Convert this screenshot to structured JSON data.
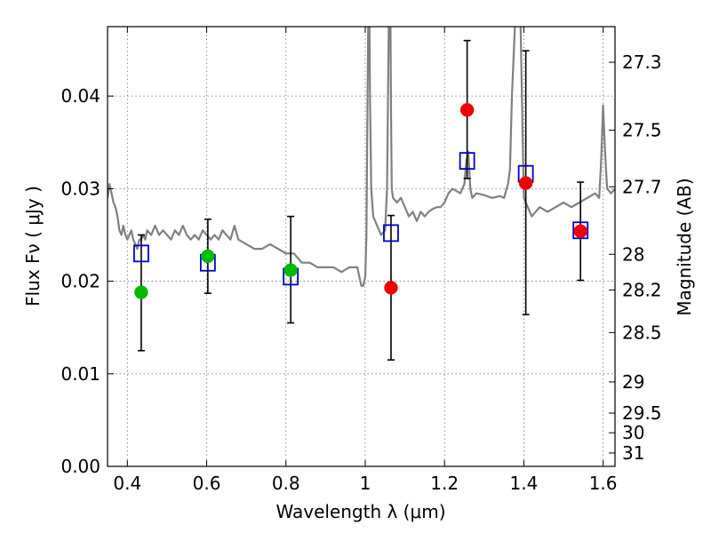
{
  "chart_data": {
    "type": "scatter",
    "xlabel": "Wavelength  λ (μm)",
    "ylabel": "Flux  Fν  ( μJy )",
    "ylabel_right": "Magnitude (AB)",
    "xlim": [
      0.35,
      1.63
    ],
    "ylim": [
      0.0,
      0.0475
    ],
    "x_ticks": [
      {
        "value": 0.4,
        "label": "0.4"
      },
      {
        "value": 0.6,
        "label": "0.6"
      },
      {
        "value": 0.8,
        "label": "0.8"
      },
      {
        "value": 1.0,
        "label": "1"
      },
      {
        "value": 1.2,
        "label": "1.2"
      },
      {
        "value": 1.4,
        "label": "1.4"
      },
      {
        "value": 1.6,
        "label": "1.6"
      }
    ],
    "y_ticks": [
      {
        "value": 0.0,
        "label": "0.00"
      },
      {
        "value": 0.01,
        "label": "0.01"
      },
      {
        "value": 0.02,
        "label": "0.02"
      },
      {
        "value": 0.03,
        "label": "0.03"
      },
      {
        "value": 0.04,
        "label": "0.04"
      }
    ],
    "mag_ticks": [
      {
        "value": 27.3,
        "label": "27.3"
      },
      {
        "value": 27.5,
        "label": "27.5"
      },
      {
        "value": 27.7,
        "label": "27.7"
      },
      {
        "value": 28,
        "label": "28"
      },
      {
        "value": 28.2,
        "label": "28.2"
      },
      {
        "value": 28.5,
        "label": "28.5"
      },
      {
        "value": 29,
        "label": "29"
      },
      {
        "value": 29.5,
        "label": "29.5"
      },
      {
        "value": 30,
        "label": "30"
      },
      {
        "value": 31,
        "label": "31"
      }
    ],
    "grid": true,
    "colors": {
      "model": "#808080",
      "model_flux": "#0000cc",
      "green": "#00bb00",
      "red": "#ee0000",
      "errorbar": "#000000"
    },
    "model_spectrum": {
      "x": [
        0.35,
        0.355,
        0.36,
        0.365,
        0.37,
        0.375,
        0.38,
        0.385,
        0.39,
        0.395,
        0.4,
        0.405,
        0.41,
        0.415,
        0.42,
        0.425,
        0.43,
        0.435,
        0.44,
        0.445,
        0.45,
        0.46,
        0.47,
        0.48,
        0.49,
        0.5,
        0.51,
        0.52,
        0.53,
        0.54,
        0.55,
        0.56,
        0.57,
        0.58,
        0.59,
        0.6,
        0.61,
        0.62,
        0.63,
        0.64,
        0.65,
        0.66,
        0.67,
        0.68,
        0.7,
        0.72,
        0.74,
        0.76,
        0.78,
        0.8,
        0.82,
        0.84,
        0.86,
        0.88,
        0.9,
        0.92,
        0.94,
        0.96,
        0.98,
        0.985,
        0.99,
        0.995,
        1.0,
        1.003,
        1.006,
        1.008,
        1.01,
        1.012,
        1.015,
        1.02,
        1.03,
        1.04,
        1.05,
        1.055,
        1.06,
        1.063,
        1.065,
        1.067,
        1.07,
        1.08,
        1.09,
        1.1,
        1.11,
        1.12,
        1.13,
        1.14,
        1.15,
        1.16,
        1.17,
        1.18,
        1.19,
        1.2,
        1.21,
        1.22,
        1.24,
        1.25,
        1.255,
        1.26,
        1.265,
        1.27,
        1.28,
        1.3,
        1.32,
        1.34,
        1.35,
        1.36,
        1.365,
        1.37,
        1.38,
        1.39,
        1.4,
        1.42,
        1.44,
        1.46,
        1.48,
        1.5,
        1.52,
        1.54,
        1.56,
        1.58,
        1.59,
        1.595,
        1.6,
        1.605,
        1.61,
        1.62,
        1.63
      ],
      "y": [
        0.029,
        0.0305,
        0.0295,
        0.0285,
        0.028,
        0.027,
        0.0255,
        0.025,
        0.026,
        0.025,
        0.0245,
        0.025,
        0.0255,
        0.0245,
        0.024,
        0.0235,
        0.0245,
        0.0245,
        0.025,
        0.0245,
        0.0255,
        0.025,
        0.026,
        0.025,
        0.0255,
        0.025,
        0.0245,
        0.0255,
        0.025,
        0.026,
        0.025,
        0.0245,
        0.025,
        0.0245,
        0.0255,
        0.025,
        0.0245,
        0.025,
        0.0245,
        0.0255,
        0.025,
        0.0245,
        0.026,
        0.0245,
        0.024,
        0.0235,
        0.0235,
        0.024,
        0.0235,
        0.023,
        0.023,
        0.022,
        0.022,
        0.0215,
        0.0215,
        0.0215,
        0.021,
        0.0215,
        0.0215,
        0.0205,
        0.0195,
        0.0195,
        0.0205,
        0.025,
        0.04,
        0.05,
        0.052,
        0.04,
        0.03,
        0.027,
        0.026,
        0.025,
        0.0255,
        0.03,
        0.05,
        0.052,
        0.038,
        0.03,
        0.029,
        0.0285,
        0.029,
        0.028,
        0.027,
        0.0275,
        0.0265,
        0.0275,
        0.027,
        0.0275,
        0.0278,
        0.028,
        0.028,
        0.0285,
        0.0295,
        0.03,
        0.0295,
        0.0305,
        0.033,
        0.034,
        0.03,
        0.029,
        0.0295,
        0.0293,
        0.029,
        0.0292,
        0.029,
        0.0305,
        0.032,
        0.04,
        0.05,
        0.052,
        0.029,
        0.027,
        0.028,
        0.0275,
        0.028,
        0.0285,
        0.028,
        0.0285,
        0.029,
        0.0295,
        0.029,
        0.033,
        0.039,
        0.034,
        0.03,
        0.0295,
        0.03
      ]
    },
    "series": [
      {
        "marker": "open-square",
        "color": "#0000cc",
        "points": [
          {
            "x": 0.435,
            "y": 0.023
          },
          {
            "x": 0.603,
            "y": 0.022
          },
          {
            "x": 0.812,
            "y": 0.0205
          },
          {
            "x": 1.065,
            "y": 0.0252
          },
          {
            "x": 1.257,
            "y": 0.033
          },
          {
            "x": 1.405,
            "y": 0.0316
          },
          {
            "x": 1.543,
            "y": 0.0255
          }
        ]
      },
      {
        "marker": "filled-circle",
        "color": "#00bb00",
        "points": [
          {
            "x": 0.435,
            "y": 0.0188,
            "y_err_low": 0.0063,
            "y_err_high": 0.0062
          },
          {
            "x": 0.603,
            "y": 0.0227,
            "y_err_low": 0.004,
            "y_err_high": 0.004
          },
          {
            "x": 0.812,
            "y": 0.0212,
            "y_err_low": 0.0057,
            "y_err_high": 0.0058
          }
        ]
      },
      {
        "marker": "filled-circle",
        "color": "#ee0000",
        "points": [
          {
            "x": 1.065,
            "y": 0.0193,
            "y_err_low": 0.0078,
            "y_err_high": 0.0078
          },
          {
            "x": 1.257,
            "y": 0.0385,
            "y_err_low": 0.0074,
            "y_err_high": 0.0075
          },
          {
            "x": 1.405,
            "y": 0.0306,
            "y_err_low": 0.0142,
            "y_err_high": 0.0143
          },
          {
            "x": 1.543,
            "y": 0.0254,
            "y_err_low": 0.0053,
            "y_err_high": 0.0053
          }
        ]
      }
    ]
  }
}
